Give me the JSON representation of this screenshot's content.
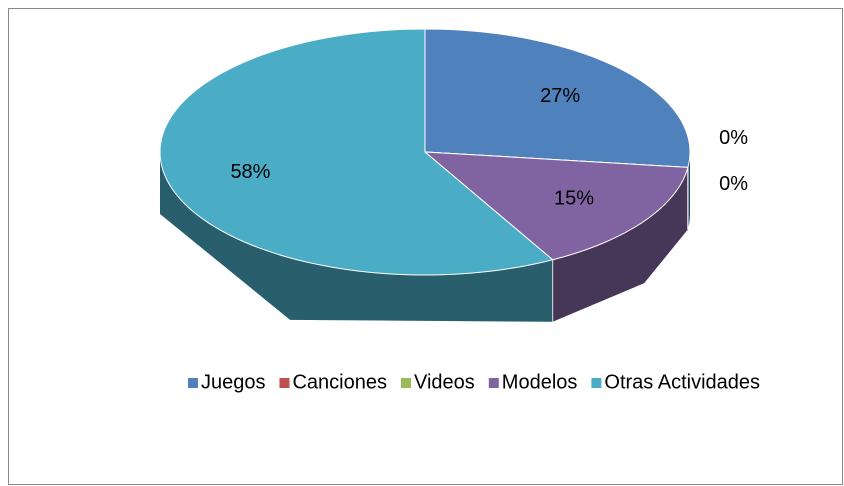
{
  "chart_data": {
    "type": "pie",
    "three_d": true,
    "categories": [
      "Juegos",
      "Canciones",
      "Videos",
      "Modelos",
      "Otras Actividades"
    ],
    "values": [
      27,
      0,
      0,
      15,
      58
    ],
    "value_labels": [
      "27%",
      "0%",
      "0%",
      "15%",
      "58%"
    ],
    "colors": [
      "#4f81bd",
      "#c0504d",
      "#9bbb59",
      "#8064a2",
      "#4bacc6"
    ],
    "legend": "bottom"
  }
}
